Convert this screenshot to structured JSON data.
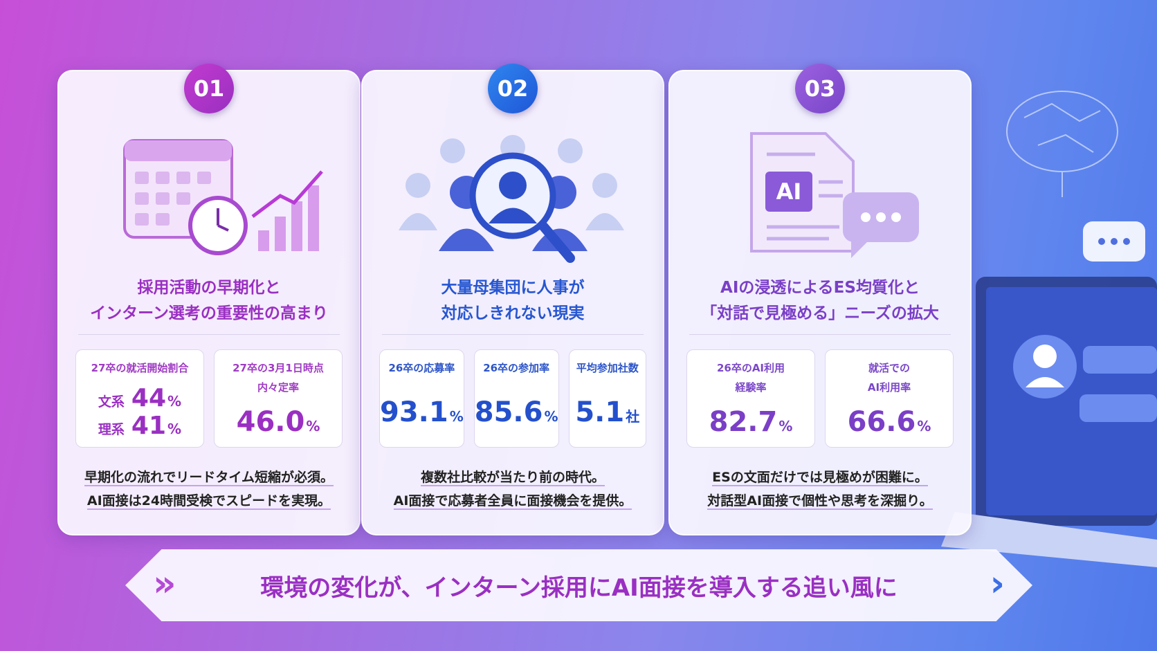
{
  "cards": [
    {
      "number": "01",
      "title_lines": [
        "採用活動の早期化と",
        "インターン選考の重要性の高まり"
      ],
      "stats": [
        {
          "label_lines": [
            "27卒の就活開始割合"
          ],
          "rows": [
            {
              "prefix": "文系",
              "value": "44",
              "unit": "%"
            },
            {
              "prefix": "理系",
              "value": "41",
              "unit": "%"
            }
          ]
        },
        {
          "label_lines": [
            "27卒の3月1日時点",
            "内々定率"
          ],
          "rows": [
            {
              "value": "46.0",
              "unit": "%"
            }
          ]
        }
      ],
      "body_lines": [
        "早期化の流れでリードタイム短縮が必須。",
        "AI面接は24時間受検でスピードを実現。"
      ]
    },
    {
      "number": "02",
      "title_lines": [
        "大量母集団に人事が",
        "対応しきれない現実"
      ],
      "stats": [
        {
          "label_lines": [
            "26卒の応募率"
          ],
          "rows": [
            {
              "value": "93.1",
              "unit": "%"
            }
          ]
        },
        {
          "label_lines": [
            "26卒の参加率"
          ],
          "rows": [
            {
              "value": "85.6",
              "unit": "%"
            }
          ]
        },
        {
          "label_lines": [
            "平均参加社数"
          ],
          "rows": [
            {
              "value": "5.1",
              "unit": "社"
            }
          ]
        }
      ],
      "body_lines": [
        "複数社比較が当たり前の時代。",
        "AI面接で応募者全員に面接機会を提供。"
      ]
    },
    {
      "number": "03",
      "icon_text": "AI",
      "title_lines": [
        "AIの浸透によるES均質化と",
        "「対話で見極める」ニーズの拡大"
      ],
      "stats": [
        {
          "label_lines": [
            "26卒のAI利用",
            "経験率"
          ],
          "rows": [
            {
              "value": "82.7",
              "unit": "%"
            }
          ]
        },
        {
          "label_lines": [
            "就活での",
            "AI利用率"
          ],
          "rows": [
            {
              "value": "66.6",
              "unit": "%"
            }
          ]
        }
      ],
      "body_lines": [
        "ESの文面だけでは見極めが困難に。",
        "対話型AI面接で個性や思考を深掘り。"
      ]
    }
  ],
  "banner": {
    "text": "環境の変化が、インターン採用にAI面接を導入する追い風に"
  }
}
